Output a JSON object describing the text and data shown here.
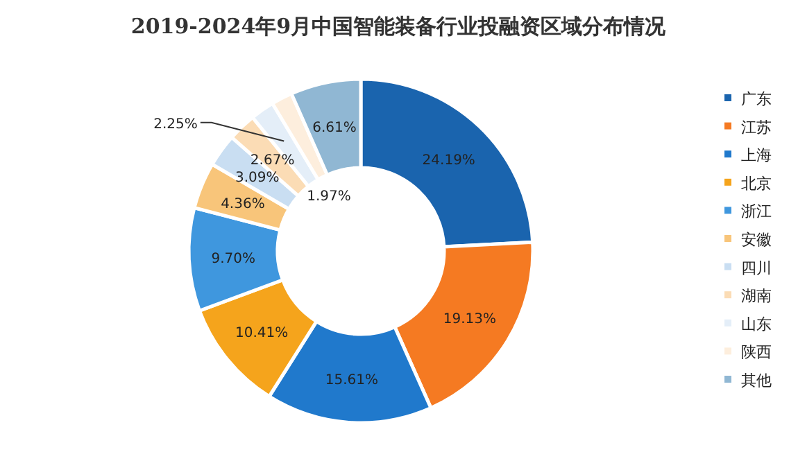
{
  "chart_data": {
    "type": "donut",
    "title": "2019-2024年9月中国智能装备行业投融资区域分布情况",
    "categories": [
      "广东",
      "江苏",
      "上海",
      "北京",
      "浙江",
      "安徽",
      "四川",
      "湖南",
      "山东",
      "陕西",
      "其他"
    ],
    "values": [
      24.19,
      19.13,
      15.61,
      10.41,
      9.7,
      4.36,
      3.09,
      2.67,
      2.25,
      1.97,
      6.61
    ],
    "colors": [
      "#1a64ae",
      "#f57a22",
      "#2079cc",
      "#f5a41c",
      "#3f97de",
      "#f8c57a",
      "#c9def2",
      "#fbdcb5",
      "#e4eef8",
      "#fdeedd",
      "#90b7d3"
    ],
    "value_labels": [
      "24.19%",
      "19.13%",
      "15.61%",
      "10.41%",
      "9.70%",
      "4.36%",
      "3.09%",
      "2.67%",
      "2.25%",
      "1.97%",
      "6.61%"
    ],
    "legend": "right"
  }
}
